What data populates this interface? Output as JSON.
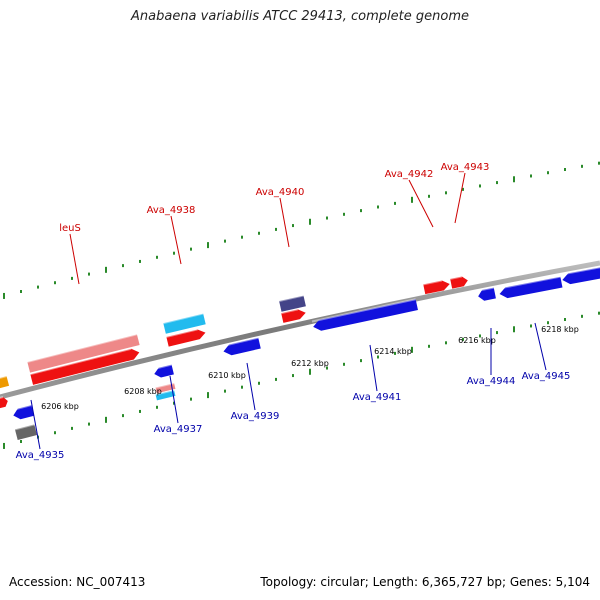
{
  "title": "Anabaena variabilis ATCC 29413, complete genome",
  "footer": {
    "accession": "Accession: NC_007413",
    "summary": "Topology: circular; Length: 6,365,727 bp; Genes: 5,104"
  },
  "colors": {
    "backbone": "#888888",
    "tick": "#2a8a2a",
    "label_forward": "#cc0000",
    "label_reverse": "#0000aa",
    "ruler_text": "#000000"
  },
  "ruler": [
    {
      "label": "6206 kbp"
    },
    {
      "label": "6208 kbp"
    },
    {
      "label": "6210 kbp"
    },
    {
      "label": "6212 kbp"
    },
    {
      "label": "6214 kbp"
    },
    {
      "label": "6216 kbp"
    },
    {
      "label": "6218 kbp"
    }
  ],
  "genes": {
    "forward": [
      "leuS",
      "Ava_4938",
      "Ava_4940",
      "Ava_4942",
      "Ava_4943"
    ],
    "reverse": [
      "Ava_4935",
      "Ava_4937",
      "Ava_4939",
      "Ava_4941",
      "Ava_4944",
      "Ava_4945"
    ]
  }
}
